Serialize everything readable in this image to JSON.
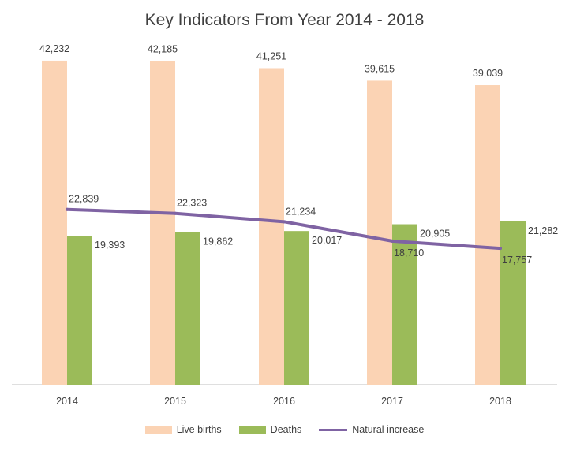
{
  "chart_data": {
    "type": "bar",
    "title": "Key Indicators From Year 2014 - 2018",
    "categories": [
      "2014",
      "2015",
      "2016",
      "2017",
      "2018"
    ],
    "series": [
      {
        "name": "Live births",
        "kind": "bar",
        "color": "#FBD3B4",
        "values": [
          42232,
          42185,
          41251,
          39615,
          39039
        ],
        "labels": [
          "42,232",
          "42,185",
          "41,251",
          "39,615",
          "39,039"
        ]
      },
      {
        "name": "Deaths",
        "kind": "bar",
        "color": "#9BBB59",
        "values": [
          19393,
          19862,
          20017,
          20905,
          21282
        ],
        "labels": [
          "19,393",
          "19,862",
          "20,017",
          "20,905",
          "21,282"
        ]
      },
      {
        "name": "Natural increase",
        "kind": "line",
        "color": "#7F63A3",
        "values": [
          22839,
          22323,
          21234,
          18710,
          17757
        ],
        "labels": [
          "22,839",
          "22,323",
          "21,234",
          "18,710",
          "17,757"
        ]
      }
    ],
    "ylim": [
      0,
      45000
    ],
    "grid": false,
    "legend_position": "bottom"
  }
}
